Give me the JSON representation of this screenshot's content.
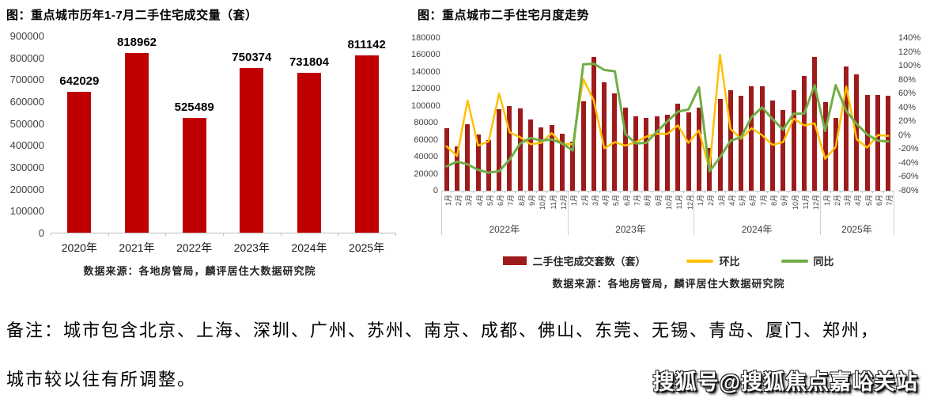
{
  "note": {
    "line1": "备注：城市包含北京、上海、深圳、广州、苏州、南京、成都、佛山、东莞、无锡、青岛、厦门、郑州，",
    "line2": "城市较以往有所调整。"
  },
  "watermark": {
    "text": "搜狐号@搜狐焦点嘉峪关站"
  },
  "colors": {
    "left_bar": "#c00000",
    "right_bar": "#9e1b1b",
    "mom_line": "#ffc000",
    "yoy_line": "#70ad47",
    "axis_line": "#bfbfbf",
    "separator": "#d0d0d0",
    "tick_text": "#404040"
  },
  "chart_data": [
    {
      "id": "annual-volume",
      "type": "bar",
      "title": "图：重点城市历年1-7月二手住宅成交量（套）",
      "categories": [
        "2020年",
        "2021年",
        "2022年",
        "2023年",
        "2024年",
        "2025年"
      ],
      "values": [
        642029,
        818962,
        525489,
        750374,
        731804,
        811142
      ],
      "data_labels": [
        "642029",
        "818962",
        "525489",
        "750374",
        "731804",
        "811142"
      ],
      "ylim": [
        0,
        900000
      ],
      "y_ticks": [
        "900000",
        "800000",
        "700000",
        "600000",
        "500000",
        "400000",
        "300000",
        "200000",
        "100000",
        "0"
      ],
      "grid": false,
      "legend": "none",
      "source": "数据来源：各地房管局，麟评居住大数据研究院"
    },
    {
      "id": "monthly-trend",
      "type": "bar+line",
      "title": "图：重点城市二手住宅月度走势",
      "x_labels": [
        "1月",
        "2月",
        "3月",
        "4月",
        "5月",
        "6月",
        "7月",
        "8月",
        "9月",
        "10月",
        "11月",
        "12月",
        "1月",
        "2月",
        "3月",
        "4月",
        "5月",
        "6月",
        "7月",
        "8月",
        "9月",
        "10月",
        "11月",
        "12月",
        "1月",
        "2月",
        "3月",
        "4月",
        "5月",
        "6月",
        "7月",
        "8月",
        "9月",
        "10月",
        "11月",
        "12月",
        "1月",
        "2月",
        "3月",
        "4月",
        "5月",
        "6月",
        "7月"
      ],
      "year_groups": [
        {
          "label": "2022年",
          "months": 12
        },
        {
          "label": "2023年",
          "months": 12
        },
        {
          "label": "2024年",
          "months": 12
        },
        {
          "label": "2025年",
          "months": 7
        }
      ],
      "left_axis": {
        "ylim": [
          0,
          180000
        ],
        "ticks": [
          "180000",
          "160000",
          "140000",
          "120000",
          "100000",
          "80000",
          "60000",
          "40000",
          "20000",
          "0"
        ]
      },
      "right_axis": {
        "ylim_pct": [
          -80,
          140
        ],
        "ticks": [
          "140%",
          "120%",
          "100%",
          "80%",
          "60%",
          "40%",
          "20%",
          "0%",
          "-20%",
          "-40%",
          "-60%",
          "-80%"
        ]
      },
      "series": [
        {
          "name": "二手住宅成交套数（套）",
          "type": "bar",
          "axis": "left",
          "values": [
            74000,
            52000,
            78000,
            66000,
            60000,
            96000,
            100000,
            97000,
            84000,
            75000,
            77000,
            67000,
            58000,
            105000,
            158000,
            128000,
            115000,
            98000,
            88000,
            86000,
            88000,
            90000,
            103000,
            92000,
            98000,
            50000,
            108000,
            118000,
            112000,
            123000,
            123000,
            106000,
            95000,
            118000,
            135000,
            158000,
            104000,
            86000,
            146000,
            137000,
            113000,
            113000,
            112000
          ]
        },
        {
          "name": "环比",
          "type": "line",
          "axis": "right",
          "values_pct": [
            -16,
            -30,
            50,
            -15,
            -9,
            60,
            4,
            -3,
            -13,
            -11,
            3,
            -13,
            -13,
            81,
            50,
            -19,
            -10,
            -15,
            -10,
            -2,
            2,
            2,
            14,
            -11,
            7,
            -49,
            116,
            9,
            -5,
            10,
            0,
            -14,
            -10,
            24,
            14,
            17,
            -34,
            -17,
            70,
            -6,
            -18,
            0,
            -1
          ]
        },
        {
          "name": "同比",
          "type": "line",
          "axis": "right",
          "values_pct": [
            -45,
            -38,
            -42,
            -50,
            -54,
            -52,
            -35,
            -12,
            -4,
            -8,
            -6,
            -12,
            -22,
            102,
            103,
            94,
            92,
            2,
            -12,
            -11,
            5,
            20,
            34,
            37,
            69,
            -52,
            -32,
            -8,
            -3,
            26,
            40,
            23,
            8,
            31,
            31,
            72,
            6,
            72,
            35,
            16,
            1,
            -8,
            -9
          ]
        }
      ],
      "grid": false,
      "legend_position": "bottom",
      "source": "数据来源：各地房管局，麟评居住大数据研究院"
    }
  ]
}
